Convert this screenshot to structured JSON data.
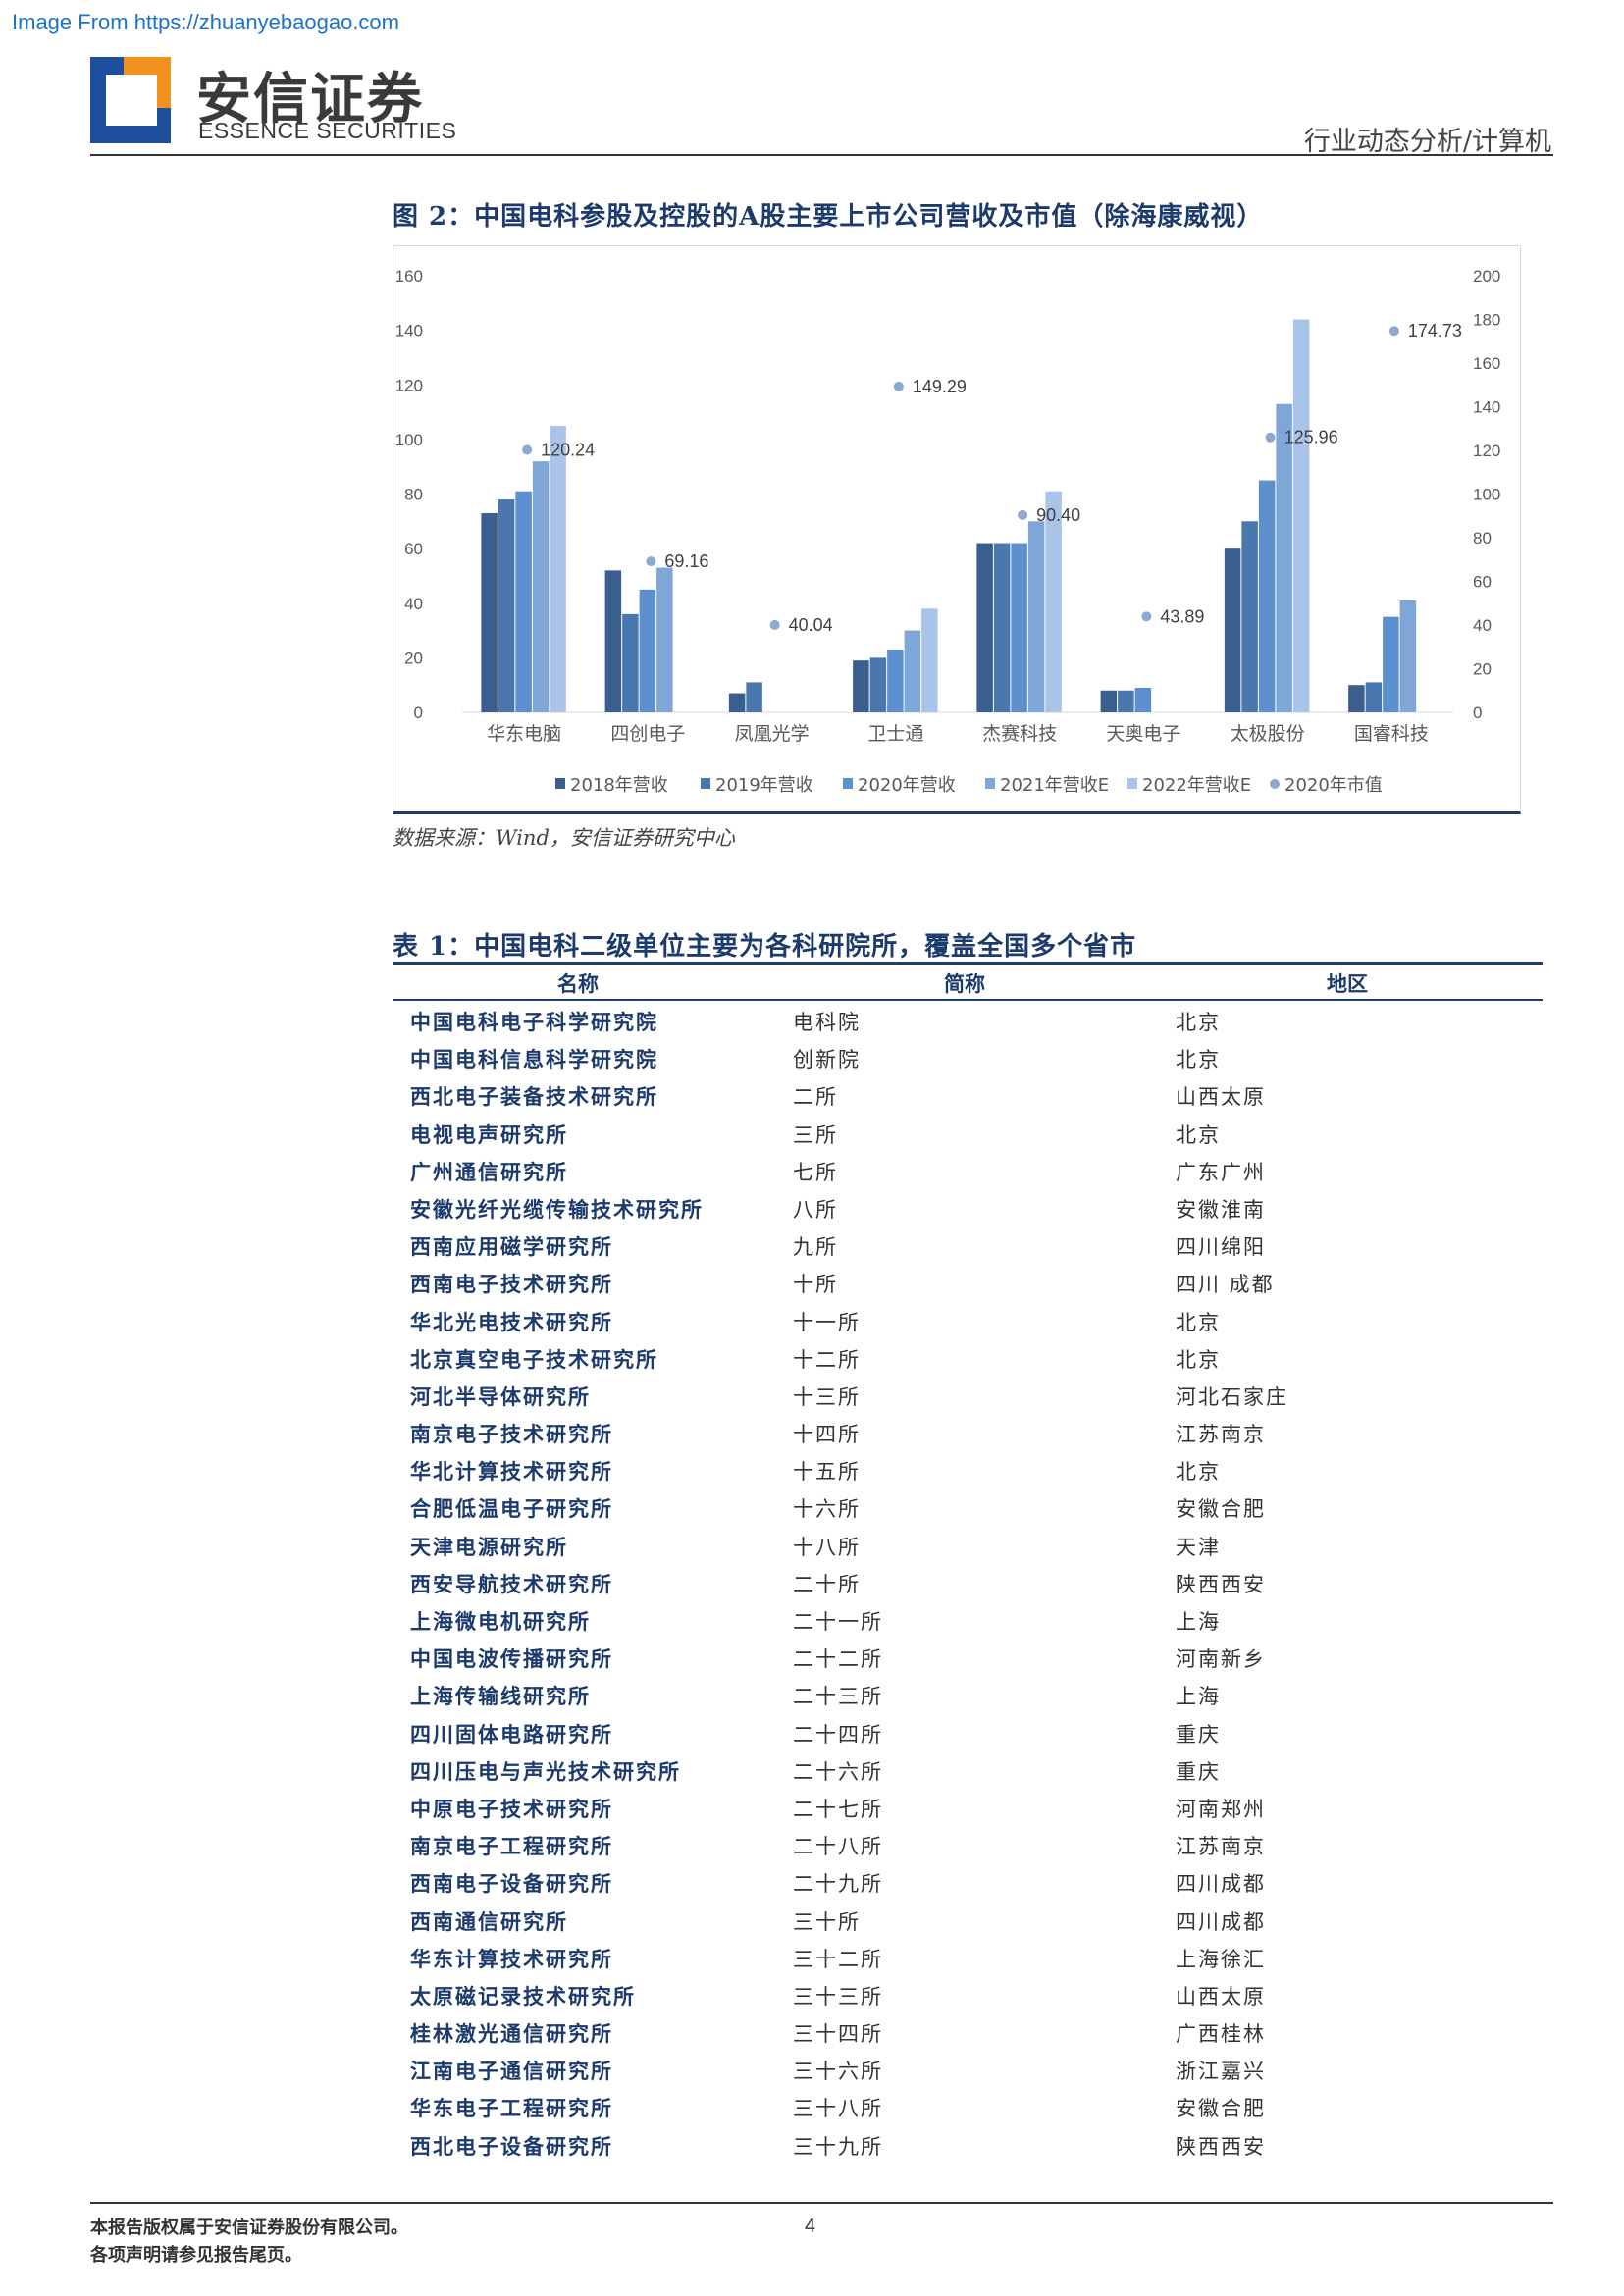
{
  "watermark": "Image From https://zhuanyebaogao.com",
  "header": {
    "brand_cn": "安信证券",
    "brand_en": "ESSENCE SECURITIES",
    "section": "行业动态分析/计算机"
  },
  "figure": {
    "title": "图 2：中国电科参股及控股的A股主要上市公司营收及市值（除海康威视）",
    "source": "数据来源：Wind，安信证券研究中心"
  },
  "chart_data": {
    "type": "bar",
    "categories": [
      "华东电脑",
      "四创电子",
      "凤凰光学",
      "卫士通",
      "杰赛科技",
      "天奥电子",
      "太极股份",
      "国睿科技"
    ],
    "series": [
      {
        "name": "2018年营收",
        "color": "#3a5f8f",
        "values": [
          73,
          52,
          7,
          19,
          62,
          8,
          60,
          10
        ]
      },
      {
        "name": "2019年营收",
        "color": "#4a77ae",
        "values": [
          78,
          36,
          11,
          20,
          62,
          8,
          70,
          11
        ]
      },
      {
        "name": "2020年营收",
        "color": "#5b8fcd",
        "values": [
          81,
          45,
          null,
          23,
          62,
          9,
          85,
          35
        ]
      },
      {
        "name": "2021年营收E",
        "color": "#7ea7d8",
        "values": [
          92,
          53,
          null,
          30,
          70,
          null,
          113,
          41
        ]
      },
      {
        "name": "2022年营收E",
        "color": "#a9c4e8",
        "values": [
          105,
          null,
          null,
          38,
          81,
          null,
          144,
          null
        ]
      }
    ],
    "scatter": {
      "name": "2020年市值",
      "color": "#8ea9cf",
      "values": [
        120.24,
        69.16,
        40.04,
        149.29,
        90.4,
        43.89,
        125.96,
        174.73
      ]
    },
    "value_labels": [
      "120.24",
      "69.16",
      "40.04",
      "149.29",
      "90.40",
      "43.89",
      "125.96",
      "174.73"
    ],
    "y_left": {
      "min": 0,
      "max": 160,
      "ticks": [
        "0",
        "20",
        "40",
        "60",
        "80",
        "100",
        "120",
        "140",
        "160"
      ]
    },
    "y_right": {
      "min": 0,
      "max": 200,
      "ticks": [
        "0",
        "20",
        "40",
        "60",
        "80",
        "100",
        "120",
        "140",
        "160",
        "180",
        "200"
      ]
    },
    "legend_position": "bottom",
    "grid": false
  },
  "table": {
    "title": "表 1：中国电科二级单位主要为各科研院所，覆盖全国多个省市",
    "headers": [
      "名称",
      "简称",
      "地区"
    ],
    "rows": [
      [
        "中国电科电子科学研究院",
        "电科院",
        "北京"
      ],
      [
        "中国电科信息科学研究院",
        "创新院",
        "北京"
      ],
      [
        "西北电子装备技术研究所",
        "二所",
        "山西太原"
      ],
      [
        "电视电声研究所",
        "三所",
        "北京"
      ],
      [
        "广州通信研究所",
        "七所",
        "广东广州"
      ],
      [
        "安徽光纤光缆传输技术研究所",
        "八所",
        "安徽淮南"
      ],
      [
        "西南应用磁学研究所",
        "九所",
        "四川绵阳"
      ],
      [
        "西南电子技术研究所",
        "十所",
        "四川 成都"
      ],
      [
        "华北光电技术研究所",
        "十一所",
        "北京"
      ],
      [
        "北京真空电子技术研究所",
        "十二所",
        "北京"
      ],
      [
        "河北半导体研究所",
        "十三所",
        "河北石家庄"
      ],
      [
        "南京电子技术研究所",
        "十四所",
        "江苏南京"
      ],
      [
        "华北计算技术研究所",
        "十五所",
        "北京"
      ],
      [
        "合肥低温电子研究所",
        "十六所",
        "安徽合肥"
      ],
      [
        "天津电源研究所",
        "十八所",
        "天津"
      ],
      [
        "西安导航技术研究所",
        "二十所",
        "陕西西安"
      ],
      [
        "上海微电机研究所",
        "二十一所",
        "上海"
      ],
      [
        "中国电波传播研究所",
        "二十二所",
        "河南新乡"
      ],
      [
        "上海传输线研究所",
        "二十三所",
        "上海"
      ],
      [
        "四川固体电路研究所",
        "二十四所",
        "重庆"
      ],
      [
        "四川压电与声光技术研究所",
        "二十六所",
        "重庆"
      ],
      [
        "中原电子技术研究所",
        "二十七所",
        "河南郑州"
      ],
      [
        "南京电子工程研究所",
        "二十八所",
        "江苏南京"
      ],
      [
        "西南电子设备研究所",
        "二十九所",
        "四川成都"
      ],
      [
        "西南通信研究所",
        "三十所",
        "四川成都"
      ],
      [
        "华东计算技术研究所",
        "三十二所",
        "上海徐汇"
      ],
      [
        "太原磁记录技术研究所",
        "三十三所",
        "山西太原"
      ],
      [
        "桂林激光通信研究所",
        "三十四所",
        "广西桂林"
      ],
      [
        "江南电子通信研究所",
        "三十六所",
        "浙江嘉兴"
      ],
      [
        "华东电子工程研究所",
        "三十八所",
        "安徽合肥"
      ],
      [
        "西北电子设备研究所",
        "三十九所",
        "陕西西安"
      ]
    ]
  },
  "footer": {
    "line1": "本报告版权属于安信证券股份有限公司。",
    "line2": "各项声明请参见报告尾页。",
    "page": "4"
  }
}
